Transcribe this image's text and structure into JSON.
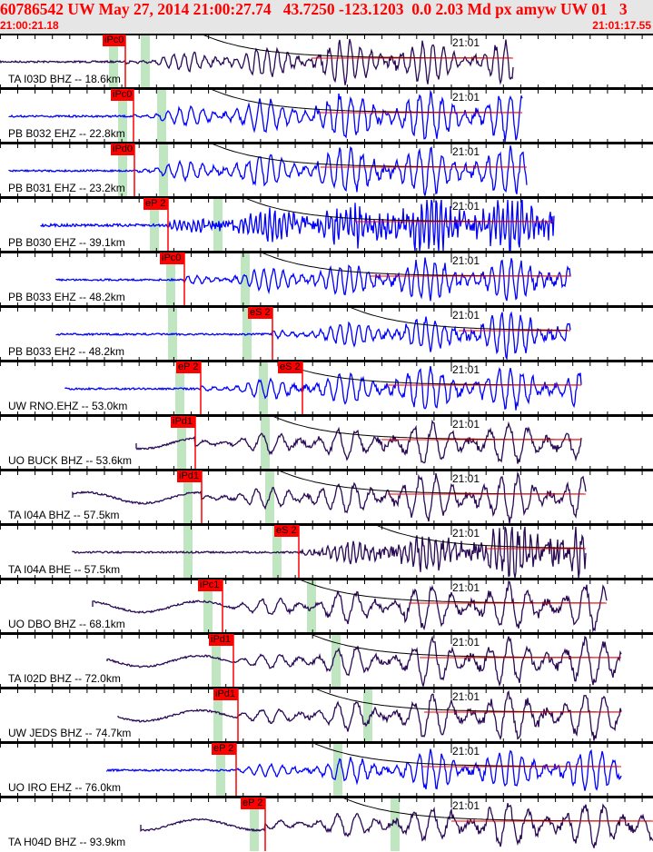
{
  "header": {
    "title": "60786542 UW May 27, 2014 21:00:27.74   43.7250 -123.1203  0.0 2.03 Md px amyw UW 01   3",
    "start_time": "21:00:21.18",
    "end_time": "21:01:17.55"
  },
  "chart_data": {
    "type": "line",
    "title": "Seismogram record section",
    "time_marker": "21:01",
    "colors": {
      "blue": "#0000ff",
      "purple": "#2a0a55",
      "pick": "#ff0000",
      "window": "#bfe6c0"
    },
    "traces": [
      {
        "label": "TA I03D BHZ -- 18.6km",
        "color": "purple",
        "picks": [
          "iPc0"
        ]
      },
      {
        "label": "PB B032 EHZ -- 22.8km",
        "color": "blue",
        "picks": [
          "iPc0"
        ]
      },
      {
        "label": "PB B031 EHZ -- 23.2km",
        "color": "blue",
        "picks": [
          "iPd0"
        ]
      },
      {
        "label": "PB B030 EHZ -- 39.1km",
        "color": "blue",
        "picks": [
          "eP 2"
        ]
      },
      {
        "label": "PB B033 EHZ -- 48.2km",
        "color": "blue",
        "picks": [
          "iPc0"
        ]
      },
      {
        "label": "PB B033 EH2 -- 48.2km",
        "color": "blue",
        "picks": [
          "eS 2"
        ]
      },
      {
        "label": "UW RNO.EHZ -- 53.0km",
        "color": "blue",
        "picks": [
          "eP 2",
          "eS 2"
        ]
      },
      {
        "label": "UO BUCK BHZ -- 53.6km",
        "color": "purple",
        "picks": [
          "iPd1"
        ]
      },
      {
        "label": "TA I04A BHZ -- 57.5km",
        "color": "purple",
        "picks": [
          "iPd1"
        ]
      },
      {
        "label": "TA I04A BHE -- 57.5km",
        "color": "purple",
        "picks": [
          "eS 2"
        ]
      },
      {
        "label": "UO DBO BHZ -- 68.1km",
        "color": "purple",
        "picks": [
          "iPc1"
        ]
      },
      {
        "label": "TA I02D BHZ -- 72.0km",
        "color": "purple",
        "picks": [
          "iPd1"
        ]
      },
      {
        "label": "UW JEDS BHZ -- 74.7km",
        "color": "purple",
        "picks": [
          "iPd1"
        ]
      },
      {
        "label": "UO IRO EHZ -- 76.0km",
        "color": "blue",
        "picks": [
          "eP 2"
        ]
      },
      {
        "label": "TA H04D BHZ -- 93.9km",
        "color": "purple",
        "picks": [
          "eP 2"
        ]
      }
    ]
  }
}
